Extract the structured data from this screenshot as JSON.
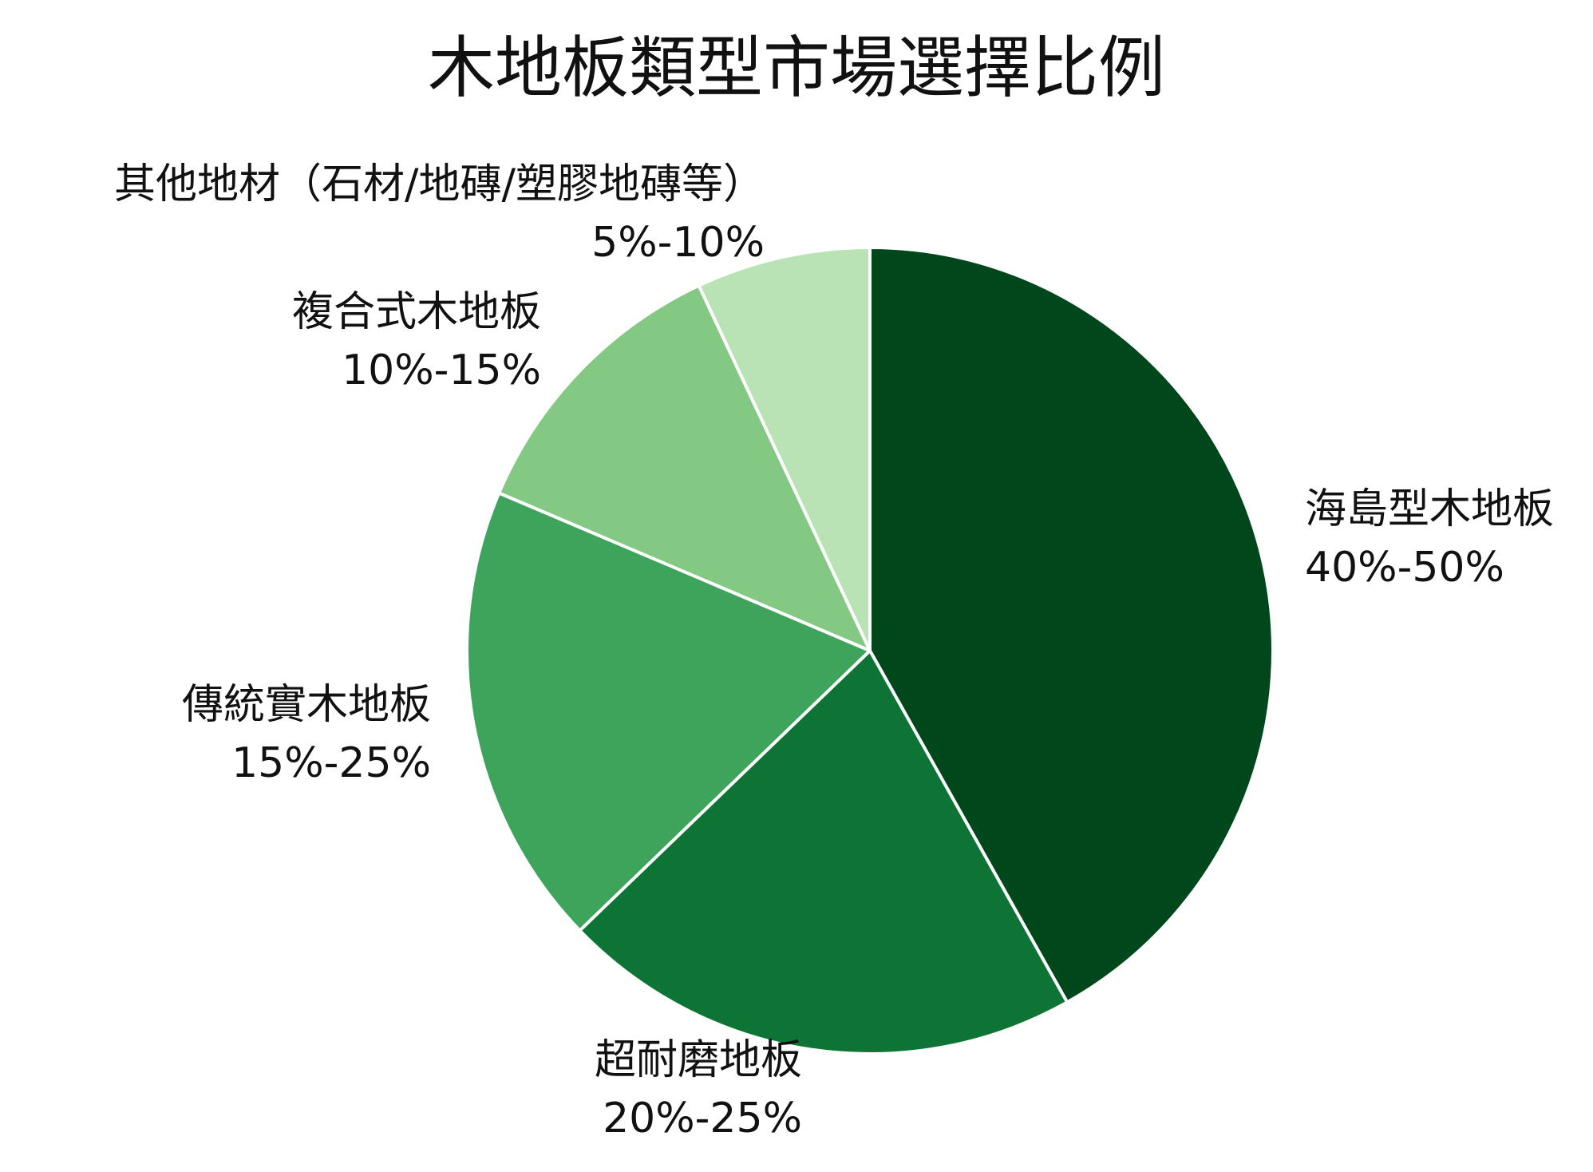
{
  "title": "木地板類型市場選擇比例",
  "chart_data": {
    "type": "pie",
    "title": "木地板類型市場選擇比例",
    "start": "12 o'clock, clockwise",
    "slices": [
      {
        "name": "海島型木地板",
        "range_label": "40%-50%",
        "value": 45,
        "color": "#00471c"
      },
      {
        "name": "超耐磨地板",
        "range_label": "20%-25%",
        "value": 22.5,
        "color": "#0d7436"
      },
      {
        "name": "傳統實木地板",
        "range_label": "15%-25%",
        "value": 20,
        "color": "#3ea45c"
      },
      {
        "name": "複合式木地板",
        "range_label": "10%-15%",
        "value": 12.5,
        "color": "#83c883"
      },
      {
        "name": "其他地材（石材/地磚/塑膠地磚等）",
        "range_label": "5%-10%",
        "value": 7.5,
        "color": "#b9e3b4"
      }
    ]
  }
}
